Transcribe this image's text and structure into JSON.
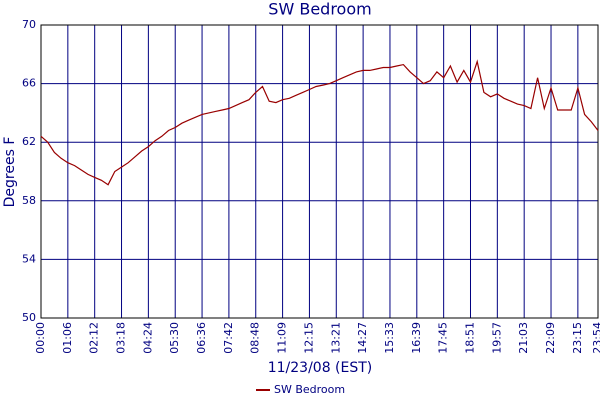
{
  "chart_data": {
    "type": "line",
    "title": "SW Bedroom",
    "x_label": "11/23/08 (EST)",
    "y_label": "Degrees F",
    "categories": [
      "00:00",
      null,
      null,
      null,
      "01:06",
      null,
      null,
      null,
      "02:12",
      null,
      null,
      null,
      "03:18",
      null,
      null,
      null,
      "04:24",
      null,
      null,
      null,
      "05:30",
      null,
      null,
      null,
      "06:36",
      null,
      null,
      null,
      "07:42",
      null,
      null,
      null,
      "08:48",
      null,
      null,
      null,
      "11:09",
      null,
      null,
      null,
      "12:15",
      null,
      null,
      null,
      "13:21",
      null,
      null,
      null,
      "14:27",
      null,
      null,
      null,
      "15:33",
      null,
      null,
      null,
      "16:39",
      null,
      null,
      null,
      "17:45",
      null,
      null,
      null,
      "18:51",
      null,
      null,
      null,
      "19:57",
      null,
      null,
      null,
      "21:03",
      null,
      null,
      null,
      "22:09",
      null,
      null,
      null,
      "23:15",
      null,
      null,
      "23:54"
    ],
    "series": [
      {
        "name": "SW Bedroom",
        "color": "#990000",
        "values": [
          62.4,
          62.0,
          61.3,
          60.9,
          60.6,
          60.4,
          60.1,
          59.8,
          59.6,
          59.4,
          59.1,
          60.0,
          60.3,
          60.6,
          61.0,
          61.4,
          61.7,
          62.1,
          62.4,
          62.8,
          63.0,
          63.3,
          63.5,
          63.7,
          63.9,
          64.0,
          64.1,
          64.2,
          64.3,
          64.5,
          64.7,
          64.9,
          65.4,
          65.8,
          64.8,
          64.7,
          64.9,
          65.0,
          65.2,
          65.4,
          65.6,
          65.8,
          65.9,
          66.0,
          66.2,
          66.4,
          66.6,
          66.8,
          66.9,
          66.9,
          67.0,
          67.1,
          67.1,
          67.2,
          67.3,
          66.8,
          66.4,
          66.0,
          66.2,
          66.8,
          66.4,
          67.2,
          66.1,
          66.9,
          66.1,
          67.5,
          65.4,
          65.1,
          65.3,
          65.0,
          64.8,
          64.6,
          64.5,
          64.3,
          66.4,
          64.3,
          65.7,
          64.2,
          64.2,
          64.2,
          65.7,
          63.9,
          63.4,
          62.8
        ]
      }
    ],
    "ylim": [
      50,
      70
    ],
    "yticks": [
      50,
      54,
      58,
      62,
      66,
      70
    ],
    "grid": true,
    "grid_color": "#000080",
    "text_color": "#000080",
    "legend": "bottom"
  }
}
